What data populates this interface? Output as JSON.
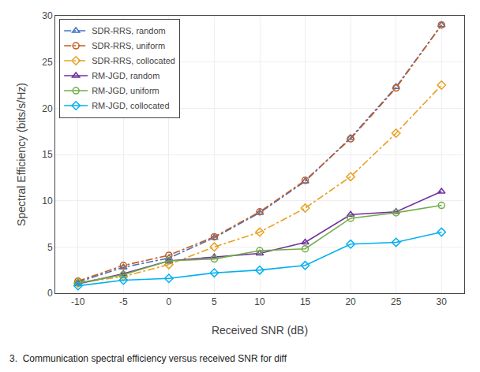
{
  "chart_data": {
    "type": "line",
    "x": [
      -10,
      -5,
      0,
      5,
      10,
      15,
      20,
      25,
      30
    ],
    "series": [
      {
        "name": "SDR-RRS, random",
        "color": "#4472c4",
        "marker": "triangle",
        "line_style": "dashdot",
        "values": [
          1.2,
          2.8,
          3.8,
          6.0,
          8.7,
          12.1,
          16.8,
          22.3,
          29.0
        ]
      },
      {
        "name": "SDR-RRS, uniform",
        "color": "#c45b1e",
        "marker": "circle",
        "line_style": "dashdot",
        "values": [
          1.3,
          3.0,
          4.1,
          6.1,
          8.8,
          12.2,
          16.7,
          22.2,
          29.0
        ]
      },
      {
        "name": "SDR-RRS, collocated",
        "color": "#e8a020",
        "marker": "diamond",
        "line_style": "dashdot",
        "values": [
          1.1,
          1.8,
          3.1,
          5.0,
          6.6,
          9.2,
          12.6,
          17.3,
          22.5
        ]
      },
      {
        "name": "RM-JGD, random",
        "color": "#7030a0",
        "marker": "triangle",
        "line_style": "solid",
        "values": [
          1.0,
          2.1,
          3.5,
          3.9,
          4.3,
          5.5,
          8.5,
          8.8,
          11.0
        ]
      },
      {
        "name": "RM-JGD, uniform",
        "color": "#70ad47",
        "marker": "circle",
        "line_style": "solid",
        "values": [
          1.1,
          2.0,
          3.5,
          3.7,
          4.6,
          4.8,
          8.1,
          8.7,
          9.5
        ]
      },
      {
        "name": "RM-JGD, collocated",
        "color": "#00b0f0",
        "marker": "diamond",
        "line_style": "solid",
        "values": [
          0.8,
          1.4,
          1.6,
          2.2,
          2.5,
          3.0,
          5.3,
          5.5,
          6.6
        ]
      }
    ],
    "xlabel": "Received SNR (dB)",
    "ylabel": "Spectral Efficiency (bits/s/Hz)",
    "xlim": [
      -12.5,
      32.5
    ],
    "ylim": [
      0,
      30
    ],
    "xticks": [
      -10,
      -5,
      0,
      5,
      10,
      15,
      20,
      25,
      30
    ],
    "yticks": [
      0,
      5,
      10,
      15,
      20,
      25,
      30
    ],
    "grid": true,
    "legend": "upper left",
    "annotations": [
      "3.  Communication spectral efficiency versus received SNR for diff"
    ]
  }
}
